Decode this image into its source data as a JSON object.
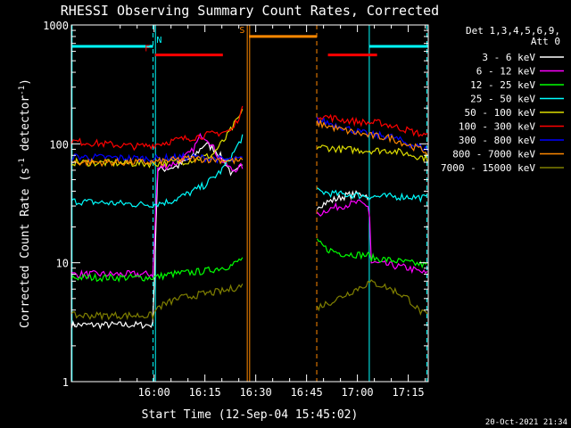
{
  "chart_data": {
    "type": "line",
    "title": "RHESSI Observing Summary Count Rates, Corrected",
    "xlabel": "Start Time (12-Sep-04 15:45:02)",
    "ylabel": "Corrected Count Rate (s⁻¹ detector⁻¹)",
    "ylabel_main": "Corrected Count Rate (s",
    "ylabel_sup1": "-1",
    "ylabel_mid": " detector",
    "ylabel_sup2": "-1",
    "ylabel_end": ")",
    "yscale": "log",
    "ylim": [
      1,
      1000
    ],
    "xlim_minutes": [
      -9.4,
      95.9
    ],
    "x_unit": "minutes after 15:45:02",
    "x_ticks": [
      {
        "value": 15,
        "label": "16:00"
      },
      {
        "value": 30,
        "label": "16:15"
      },
      {
        "value": 45,
        "label": "16:30"
      },
      {
        "value": 60,
        "label": "16:45"
      },
      {
        "value": 75,
        "label": "17:00"
      },
      {
        "value": 90,
        "label": "17:15"
      }
    ],
    "y_ticks": [
      {
        "value": 1,
        "label": "1"
      },
      {
        "value": 10,
        "label": "10"
      },
      {
        "value": 100,
        "label": "100"
      },
      {
        "value": 1000,
        "label": "1000"
      }
    ],
    "legend_header": [
      "Det 1,3,4,5,6,9,",
      "Att 0"
    ],
    "legend_position": "right",
    "footer_date": "20-Oct-2021 21:34",
    "gaps_minutes": [
      [
        41.3,
        63
      ]
    ],
    "series": [
      {
        "name": "3 - 6 keV",
        "color": "#ffffff",
        "points": [
          [
            -9.4,
            3
          ],
          [
            14.7,
            3
          ],
          [
            16,
            60
          ],
          [
            22,
            65
          ],
          [
            27,
            80
          ],
          [
            30,
            100
          ],
          [
            33,
            90
          ],
          [
            36,
            70
          ],
          [
            38,
            55
          ],
          [
            40,
            60
          ],
          [
            41.3,
            70
          ],
          [
            63,
            30
          ],
          [
            67,
            33
          ],
          [
            72,
            37
          ],
          [
            77,
            38
          ],
          [
            78.5,
            35
          ]
        ]
      },
      {
        "name": "6 - 12 keV",
        "color": "#ff00ff",
        "points": [
          [
            -9.4,
            8
          ],
          [
            14.7,
            8
          ],
          [
            16,
            62
          ],
          [
            22,
            70
          ],
          [
            26,
            85
          ],
          [
            29,
            120
          ],
          [
            31,
            110
          ],
          [
            34,
            78
          ],
          [
            38,
            60
          ],
          [
            41.3,
            65
          ],
          [
            63,
            25
          ],
          [
            66,
            28
          ],
          [
            70,
            30
          ],
          [
            75,
            32
          ],
          [
            78.5,
            30
          ],
          [
            79,
            10
          ],
          [
            85,
            9.5
          ],
          [
            90,
            9
          ],
          [
            95.9,
            8
          ]
        ]
      },
      {
        "name": "12 - 25 keV",
        "color": "#00ff00",
        "points": [
          [
            -9.4,
            7.5
          ],
          [
            14.7,
            7.5
          ],
          [
            20,
            8
          ],
          [
            30,
            8.5
          ],
          [
            38,
            9.5
          ],
          [
            41.3,
            11
          ],
          [
            63,
            15
          ],
          [
            66,
            13
          ],
          [
            70,
            12
          ],
          [
            78.5,
            11.5
          ],
          [
            79,
            11
          ],
          [
            85,
            10.5
          ],
          [
            90,
            10
          ],
          [
            95.9,
            9.5
          ]
        ]
      },
      {
        "name": "25 - 50 keV",
        "color": "#00ffff",
        "points": [
          [
            -9.4,
            33
          ],
          [
            0,
            32
          ],
          [
            10,
            31
          ],
          [
            14.7,
            31
          ],
          [
            20,
            33
          ],
          [
            25,
            38
          ],
          [
            30,
            45
          ],
          [
            35,
            60
          ],
          [
            38,
            80
          ],
          [
            40,
            100
          ],
          [
            41.3,
            120
          ],
          [
            63,
            40
          ],
          [
            68,
            38
          ],
          [
            75,
            37
          ],
          [
            80,
            36
          ],
          [
            90,
            36
          ],
          [
            95.9,
            35
          ]
        ]
      },
      {
        "name": "50 - 100 keV",
        "color": "#dddd00",
        "points": [
          [
            -9.4,
            70
          ],
          [
            14.7,
            68
          ],
          [
            25,
            72
          ],
          [
            32,
            80
          ],
          [
            36,
            110
          ],
          [
            39,
            150
          ],
          [
            41.3,
            190
          ],
          [
            63,
            95
          ],
          [
            70,
            90
          ],
          [
            78,
            88
          ],
          [
            85,
            88
          ],
          [
            90,
            82
          ],
          [
            95.9,
            75
          ]
        ]
      },
      {
        "name": "100 - 300 keV",
        "color": "#ff0000",
        "points": [
          [
            -9.4,
            105
          ],
          [
            0,
            100
          ],
          [
            10,
            95
          ],
          [
            14.7,
            98
          ],
          [
            22,
            108
          ],
          [
            30,
            118
          ],
          [
            35,
            125
          ],
          [
            38,
            130
          ],
          [
            41.3,
            200
          ],
          [
            63,
            175
          ],
          [
            70,
            160
          ],
          [
            78,
            150
          ],
          [
            82,
            150
          ],
          [
            90,
            130
          ],
          [
            95.9,
            115
          ]
        ]
      },
      {
        "name": "300 - 800 keV",
        "color": "#0000ff",
        "points": [
          [
            -9.4,
            78
          ],
          [
            14.7,
            75
          ],
          [
            25,
            78
          ],
          [
            33,
            75
          ],
          [
            38,
            73
          ],
          [
            41.3,
            75
          ],
          [
            63,
            160
          ],
          [
            70,
            140
          ],
          [
            78,
            120
          ],
          [
            85,
            115
          ],
          [
            90,
            100
          ],
          [
            95.9,
            90
          ]
        ]
      },
      {
        "name": "800 - 7000 keV",
        "color": "#ff8800",
        "points": [
          [
            -9.4,
            70
          ],
          [
            14.7,
            70
          ],
          [
            25,
            75
          ],
          [
            33,
            74
          ],
          [
            38,
            72
          ],
          [
            41.3,
            72
          ],
          [
            63,
            150
          ],
          [
            70,
            132
          ],
          [
            78,
            118
          ],
          [
            85,
            112
          ],
          [
            90,
            98
          ],
          [
            95.9,
            85
          ]
        ]
      },
      {
        "name": "7000 - 15000 keV",
        "color": "#808000",
        "points": [
          [
            -9.4,
            3.6
          ],
          [
            14.7,
            3.6
          ],
          [
            16,
            4.2
          ],
          [
            22,
            5
          ],
          [
            30,
            5.5
          ],
          [
            36,
            5.8
          ],
          [
            41.3,
            6.5
          ],
          [
            63,
            4.2
          ],
          [
            68,
            4.8
          ],
          [
            72,
            5.5
          ],
          [
            78.5,
            6.8
          ],
          [
            82,
            6.5
          ],
          [
            86,
            5.8
          ],
          [
            90,
            5
          ],
          [
            93,
            4
          ],
          [
            95.9,
            3.5
          ]
        ]
      }
    ],
    "observing_flags": [
      {
        "label": "N",
        "color": "#00ffff",
        "start": -9.4,
        "end": 14.7,
        "value": 660,
        "label_at": 16.5
      },
      {
        "label": "",
        "color": "#00ffff",
        "start": 78.5,
        "end": 95.9,
        "value": 660
      },
      {
        "label": "F",
        "color": "#ff0000",
        "start": 15.3,
        "end": 35.3,
        "value": 560,
        "label_at": 13
      },
      {
        "label": "",
        "color": "#ff0000",
        "start": 66.3,
        "end": 80.8,
        "value": 560
      },
      {
        "label": "S",
        "color": "#ff8800",
        "start": 43,
        "end": 63,
        "value": 800,
        "label_at": 41
      }
    ],
    "flag_boundaries": [
      {
        "color": "#00ffff",
        "style": "solid",
        "x": -9.2
      },
      {
        "color": "#00ffff",
        "style": "dashed",
        "x": 14.7
      },
      {
        "color": "#00ffff",
        "style": "solid",
        "x": 15.4
      },
      {
        "color": "#00ffff",
        "style": "solid",
        "x": 78.5
      },
      {
        "color": "#00ffff",
        "style": "dashed",
        "x": 95.5
      },
      {
        "color": "#ff8800",
        "style": "solid",
        "x": 42.5
      },
      {
        "color": "#ff8800",
        "style": "solid",
        "x": 43.2
      },
      {
        "color": "#ff8800",
        "style": "dashed",
        "x": 63
      }
    ]
  }
}
